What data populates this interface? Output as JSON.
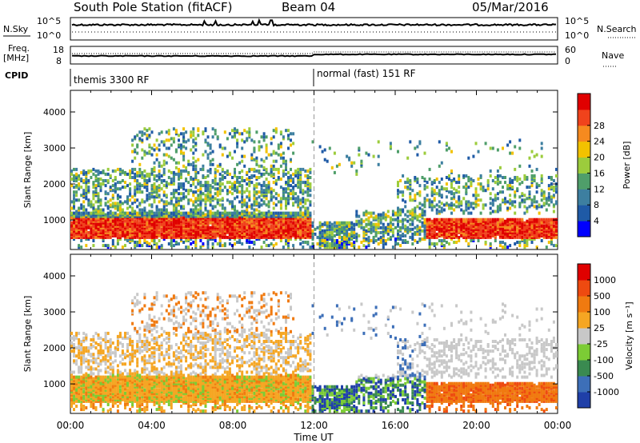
{
  "header": {
    "station": "South Pole Station (fitACF)",
    "beam": "Beam 04",
    "date": "05/Mar/2016"
  },
  "side_labels": {
    "nsky": "N.Sky",
    "nsearch": "N.Search",
    "freq": "Freq.",
    "mhz": "[MHz]",
    "nave": "Nave",
    "cpid": "CPID"
  },
  "cpid_labels": [
    "themis 3300 RF",
    "normal (fast) 151 RF"
  ],
  "noise_ticks": {
    "left": [
      "10^5",
      "10^0"
    ],
    "right": [
      "10^5",
      "10^0"
    ]
  },
  "freq_ticks": {
    "left": [
      "18",
      "8"
    ],
    "right": [
      "60",
      "0"
    ]
  },
  "chart_data": [
    {
      "type": "heatmap",
      "name_hidden": "power",
      "xlabel": "Time UT",
      "ylabel": "Slant Range [km]",
      "xlim": [
        0,
        24
      ],
      "ylim": [
        180,
        4600
      ],
      "x_tick_labels": [
        "00:00",
        "04:00",
        "08:00",
        "12:00",
        "16:00",
        "20:00",
        "00:00"
      ],
      "y_tick_labels": [
        "1000",
        "2000",
        "3000",
        "4000"
      ],
      "colorbar": {
        "label": "Power [dB]",
        "tick_labels": [
          "4",
          "8",
          "12",
          "16",
          "20",
          "24",
          "28"
        ],
        "range": [
          0,
          30
        ],
        "colors": [
          "#0000ff",
          "#1f5aa6",
          "#3d7fa0",
          "#4f9e6a",
          "#9ccc3c",
          "#f2c200",
          "#f68a1f",
          "#f0431c",
          "#e00000"
        ]
      },
      "mode_change_time": 12.0
    },
    {
      "type": "heatmap",
      "name_hidden": "velocity",
      "xlabel": "Time UT",
      "ylabel": "Slant Range [km]",
      "xlim": [
        0,
        24
      ],
      "ylim": [
        180,
        4600
      ],
      "x_tick_labels": [
        "00:00",
        "04:00",
        "08:00",
        "12:00",
        "16:00",
        "20:00",
        "00:00"
      ],
      "y_tick_labels": [
        "1000",
        "2000",
        "3000",
        "4000"
      ],
      "colorbar": {
        "label": "Velocity [m s⁻¹]",
        "tick_labels": [
          "1000",
          "500",
          "100",
          "25",
          "-25",
          "-100",
          "-500",
          "-1000"
        ],
        "colors": [
          "#1f3fa8",
          "#3d6fb8",
          "#3a8a50",
          "#7ccc35",
          "#c8c8c8",
          "#f5a623",
          "#f07a10",
          "#ee4a10",
          "#e00000"
        ]
      },
      "mode_change_time": 12.0
    }
  ],
  "xaxis_title": "Time UT"
}
